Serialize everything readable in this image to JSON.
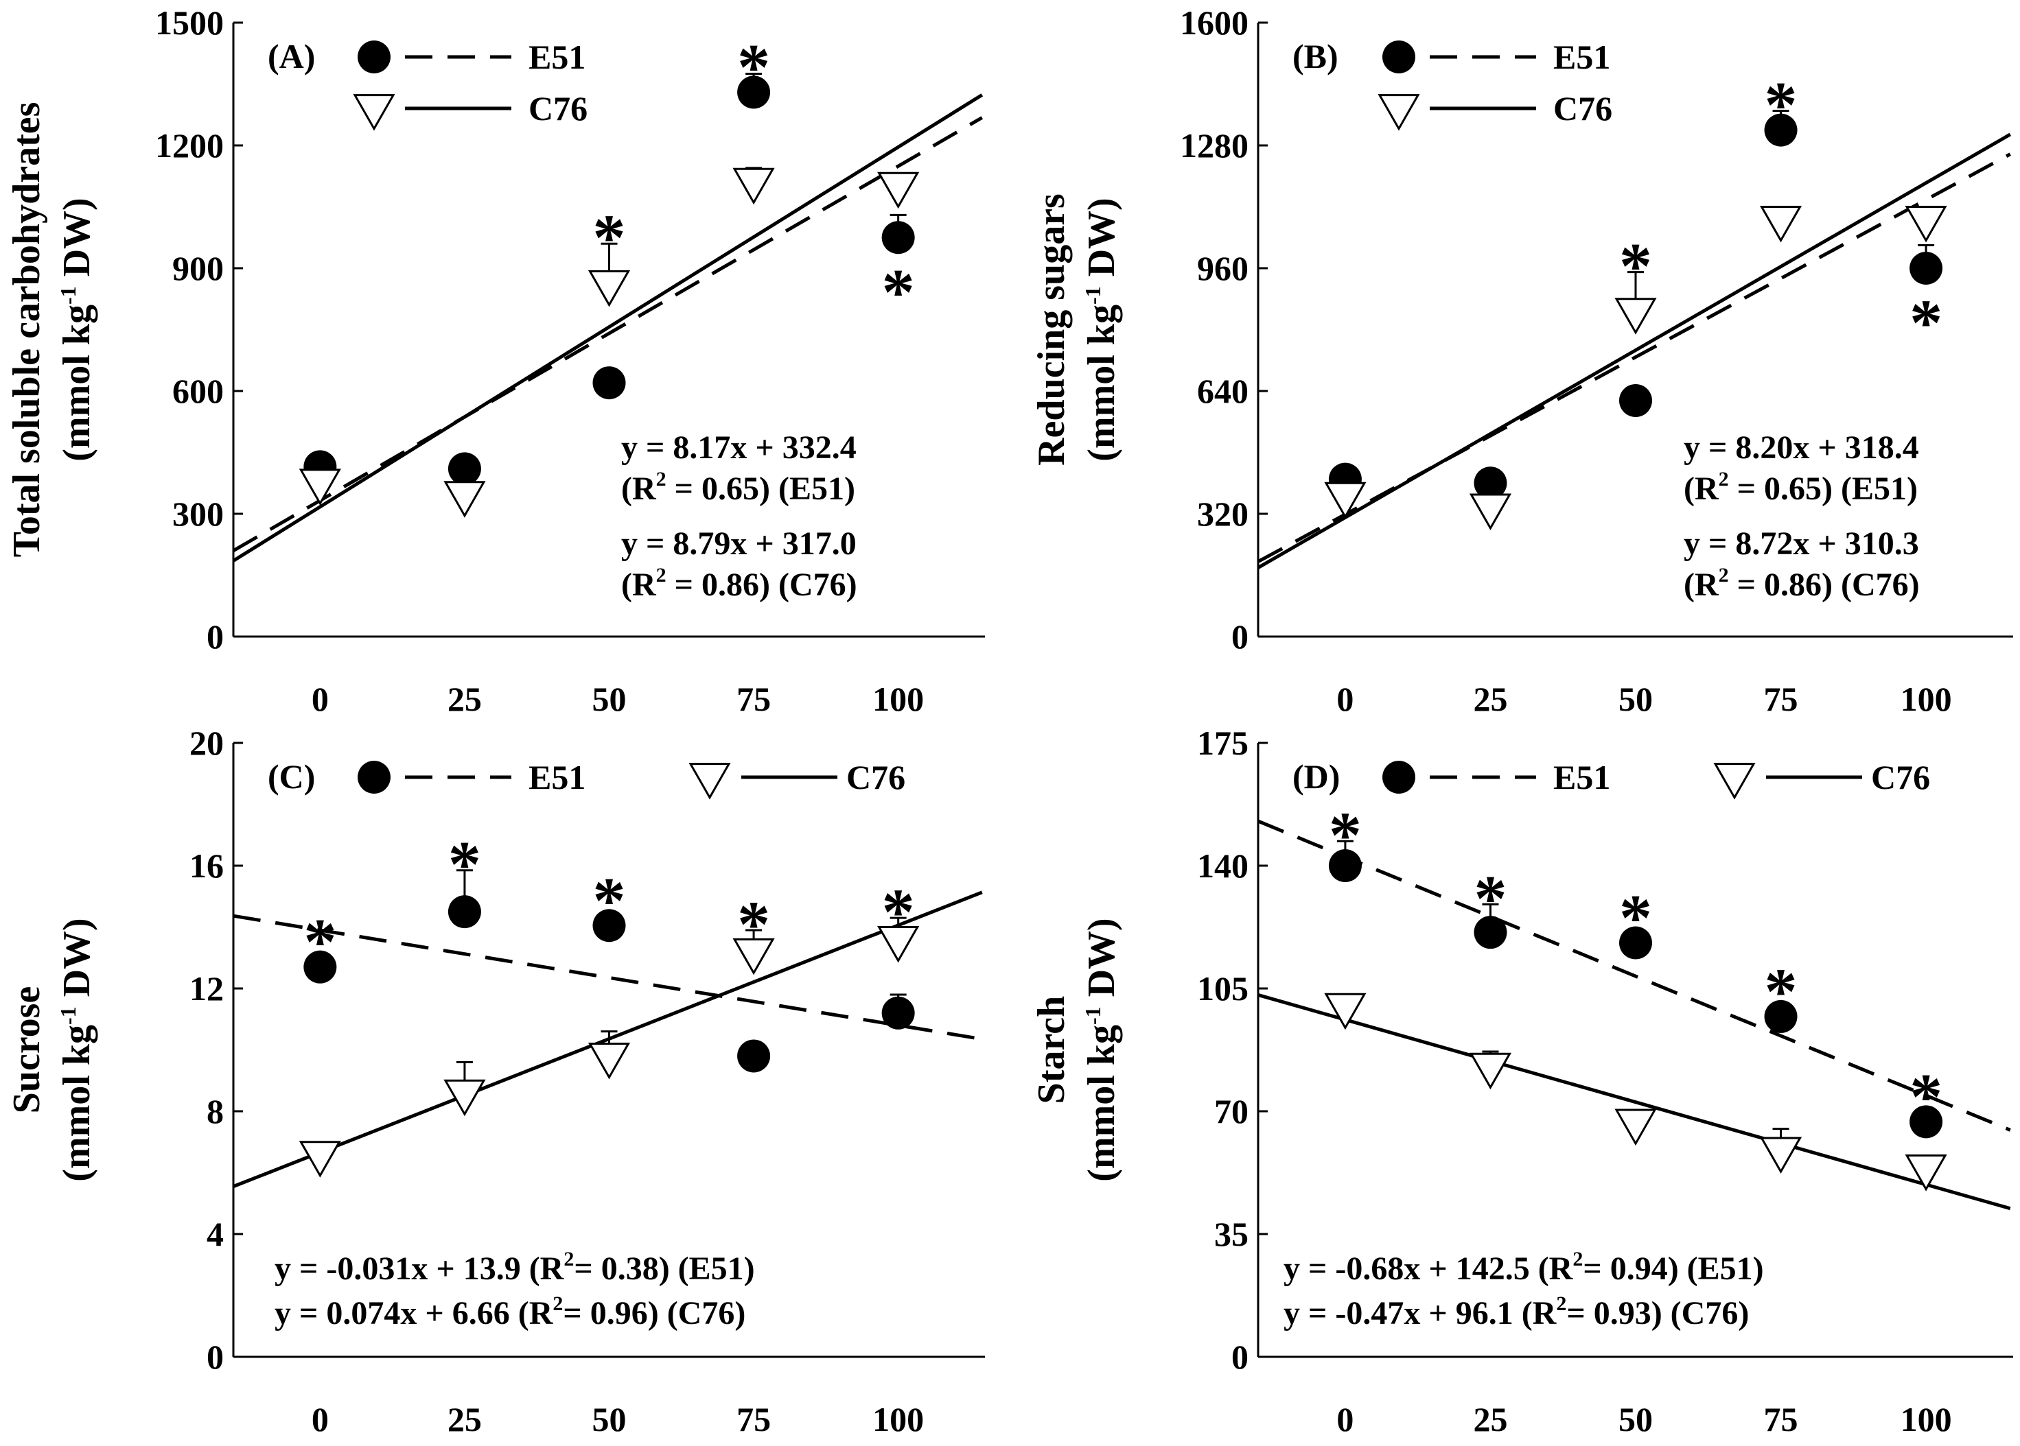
{
  "chart_data": [
    {
      "panel": "(A)",
      "type": "scatter",
      "ylabel": "Total soluble carbohydrates",
      "ylabel_units": [
        "(mmol kg",
        "-1",
        " DW)"
      ],
      "x": [
        0,
        25,
        50,
        75,
        100
      ],
      "xticks": [
        "0",
        "25",
        "50",
        "75",
        "100"
      ],
      "xlim": [
        -15,
        115
      ],
      "ylim": [
        0,
        1500
      ],
      "yticks": [
        "0",
        "300",
        "600",
        "900",
        "1200",
        "1500"
      ],
      "legend": [
        "E51",
        "C76"
      ],
      "legend_layout": "stacked",
      "series": [
        {
          "name": "E51",
          "marker": "filled-circle",
          "line": "dashed",
          "values": [
            415,
            410,
            620,
            1330,
            975
          ],
          "errors": [
            0,
            0,
            0,
            45,
            55
          ],
          "significant": [
            false,
            false,
            false,
            true,
            true
          ],
          "star_position": [
            "",
            "",
            "",
            "above",
            "below"
          ],
          "fit": {
            "slope": 8.17,
            "intercept": 332.4,
            "r2": 0.65
          }
        },
        {
          "name": "C76",
          "marker": "open-triangle",
          "line": "solid",
          "values": [
            370,
            340,
            855,
            1105,
            1095
          ],
          "errors": [
            0,
            0,
            105,
            40,
            0
          ],
          "significant": [
            false,
            false,
            true,
            false,
            false
          ],
          "star_position": [
            "",
            "",
            "above",
            "",
            ""
          ],
          "fit": {
            "slope": 8.79,
            "intercept": 317.0,
            "r2": 0.86
          }
        }
      ],
      "equations": [
        [
          "y = 8.17x + 332.4"
        ],
        [
          "(R",
          "2",
          " = 0.65) (E51)"
        ],
        [
          "y = 8.79x + 317.0"
        ],
        [
          "(R",
          "2",
          " = 0.86) (C76)"
        ]
      ]
    },
    {
      "panel": "(B)",
      "type": "scatter",
      "ylabel": "Reducing sugars",
      "ylabel_units": [
        "(mmol kg",
        "-1",
        " DW)"
      ],
      "x": [
        0,
        25,
        50,
        75,
        100
      ],
      "xticks": [
        "0",
        "25",
        "50",
        "75",
        "100"
      ],
      "xlim": [
        -15,
        115
      ],
      "ylim": [
        0,
        1600
      ],
      "yticks": [
        "0",
        "320",
        "640",
        "960",
        "1280",
        "1600"
      ],
      "legend": [
        "E51",
        "C76"
      ],
      "legend_layout": "stacked",
      "series": [
        {
          "name": "E51",
          "marker": "filled-circle",
          "line": "dashed",
          "values": [
            410,
            400,
            615,
            1320,
            960
          ],
          "errors": [
            0,
            0,
            0,
            50,
            60
          ],
          "significant": [
            false,
            false,
            false,
            true,
            true
          ],
          "star_position": [
            "",
            "",
            "",
            "above",
            "below"
          ],
          "fit": {
            "slope": 8.2,
            "intercept": 318.4,
            "r2": 0.65
          }
        },
        {
          "name": "C76",
          "marker": "open-triangle",
          "line": "solid",
          "values": [
            360,
            330,
            840,
            1080,
            1080
          ],
          "errors": [
            0,
            0,
            110,
            40,
            0
          ],
          "significant": [
            false,
            false,
            true,
            false,
            false
          ],
          "star_position": [
            "",
            "",
            "above",
            "",
            ""
          ],
          "fit": {
            "slope": 8.72,
            "intercept": 310.3,
            "r2": 0.86
          }
        }
      ],
      "equations": [
        [
          "y = 8.20x + 318.4"
        ],
        [
          "(R",
          "2",
          " = 0.65) (E51)"
        ],
        [
          "y = 8.72x + 310.3"
        ],
        [
          "(R",
          "2",
          " = 0.86) (C76)"
        ]
      ]
    },
    {
      "panel": "(C)",
      "type": "scatter",
      "ylabel": "Sucrose",
      "ylabel_units": [
        "(mmol kg",
        "-1",
        " DW)"
      ],
      "x": [
        0,
        25,
        50,
        75,
        100
      ],
      "xticks": [
        "0",
        "25",
        "50",
        "75",
        "100"
      ],
      "xlim": [
        -15,
        115
      ],
      "ylim": [
        0,
        20
      ],
      "yticks": [
        "0",
        "4",
        "8",
        "12",
        "16",
        "20"
      ],
      "legend": [
        "E51",
        "C76"
      ],
      "legend_layout": "inline",
      "series": [
        {
          "name": "E51",
          "marker": "filled-circle",
          "line": "dashed",
          "values": [
            12.7,
            14.5,
            14.05,
            9.8,
            11.2
          ],
          "errors": [
            0,
            1.35,
            0,
            0,
            0.6
          ],
          "significant": [
            true,
            true,
            true,
            false,
            false
          ],
          "star_position": [
            "above",
            "above",
            "above",
            "",
            ""
          ],
          "fit": {
            "slope": -0.031,
            "intercept": 13.9,
            "r2": 0.38
          }
        },
        {
          "name": "C76",
          "marker": "open-triangle",
          "line": "solid",
          "values": [
            6.5,
            8.5,
            9.7,
            13.1,
            13.5
          ],
          "errors": [
            0,
            1.1,
            0.9,
            0.8,
            0.8
          ],
          "significant": [
            false,
            false,
            false,
            true,
            true
          ],
          "star_position": [
            "",
            "",
            "",
            "above",
            "above"
          ],
          "fit": {
            "slope": 0.074,
            "intercept": 6.66,
            "r2": 0.96
          }
        }
      ],
      "equations": [
        [
          "y = -0.031x + 13.9 (R",
          "2",
          "= 0.38) (E51)"
        ],
        [
          "y = 0.074x + 6.66 (R",
          "2",
          "= 0.96) (C76)"
        ]
      ]
    },
    {
      "panel": "(D)",
      "type": "scatter",
      "ylabel": "Starch",
      "ylabel_units": [
        "(mmol kg",
        "-1",
        " DW)"
      ],
      "x": [
        0,
        25,
        50,
        75,
        100
      ],
      "xticks": [
        "0",
        "25",
        "50",
        "75",
        "100"
      ],
      "xlim": [
        -15,
        115
      ],
      "ylim": [
        0,
        175
      ],
      "yticks": [
        "0",
        "35",
        "70",
        "105",
        "140",
        "175"
      ],
      "legend": [
        "E51",
        "C76"
      ],
      "legend_layout": "inline",
      "series": [
        {
          "name": "E51",
          "marker": "filled-circle",
          "line": "dashed",
          "values": [
            140,
            121,
            118,
            97,
            67
          ],
          "errors": [
            7,
            8,
            0,
            0,
            0
          ],
          "significant": [
            true,
            true,
            true,
            true,
            true
          ],
          "star_position": [
            "above",
            "above",
            "above",
            "above",
            "above"
          ],
          "fit": {
            "slope": -0.68,
            "intercept": 142.5,
            "r2": 0.94
          }
        },
        {
          "name": "C76",
          "marker": "open-triangle",
          "line": "solid",
          "values": [
            99,
            82,
            66,
            58,
            53
          ],
          "errors": [
            0,
            5,
            0,
            7,
            0
          ],
          "significant": [
            false,
            false,
            false,
            false,
            false
          ],
          "star_position": [
            "",
            "",
            "",
            "",
            ""
          ],
          "fit": {
            "slope": -0.47,
            "intercept": 96.1,
            "r2": 0.93
          }
        }
      ],
      "equations": [
        [
          "y = -0.68x + 142.5 (R",
          "2",
          "= 0.94) (E51)"
        ],
        [
          "y = -0.47x + 96.1 (R",
          "2",
          "= 0.93) (C76)"
        ]
      ]
    }
  ]
}
